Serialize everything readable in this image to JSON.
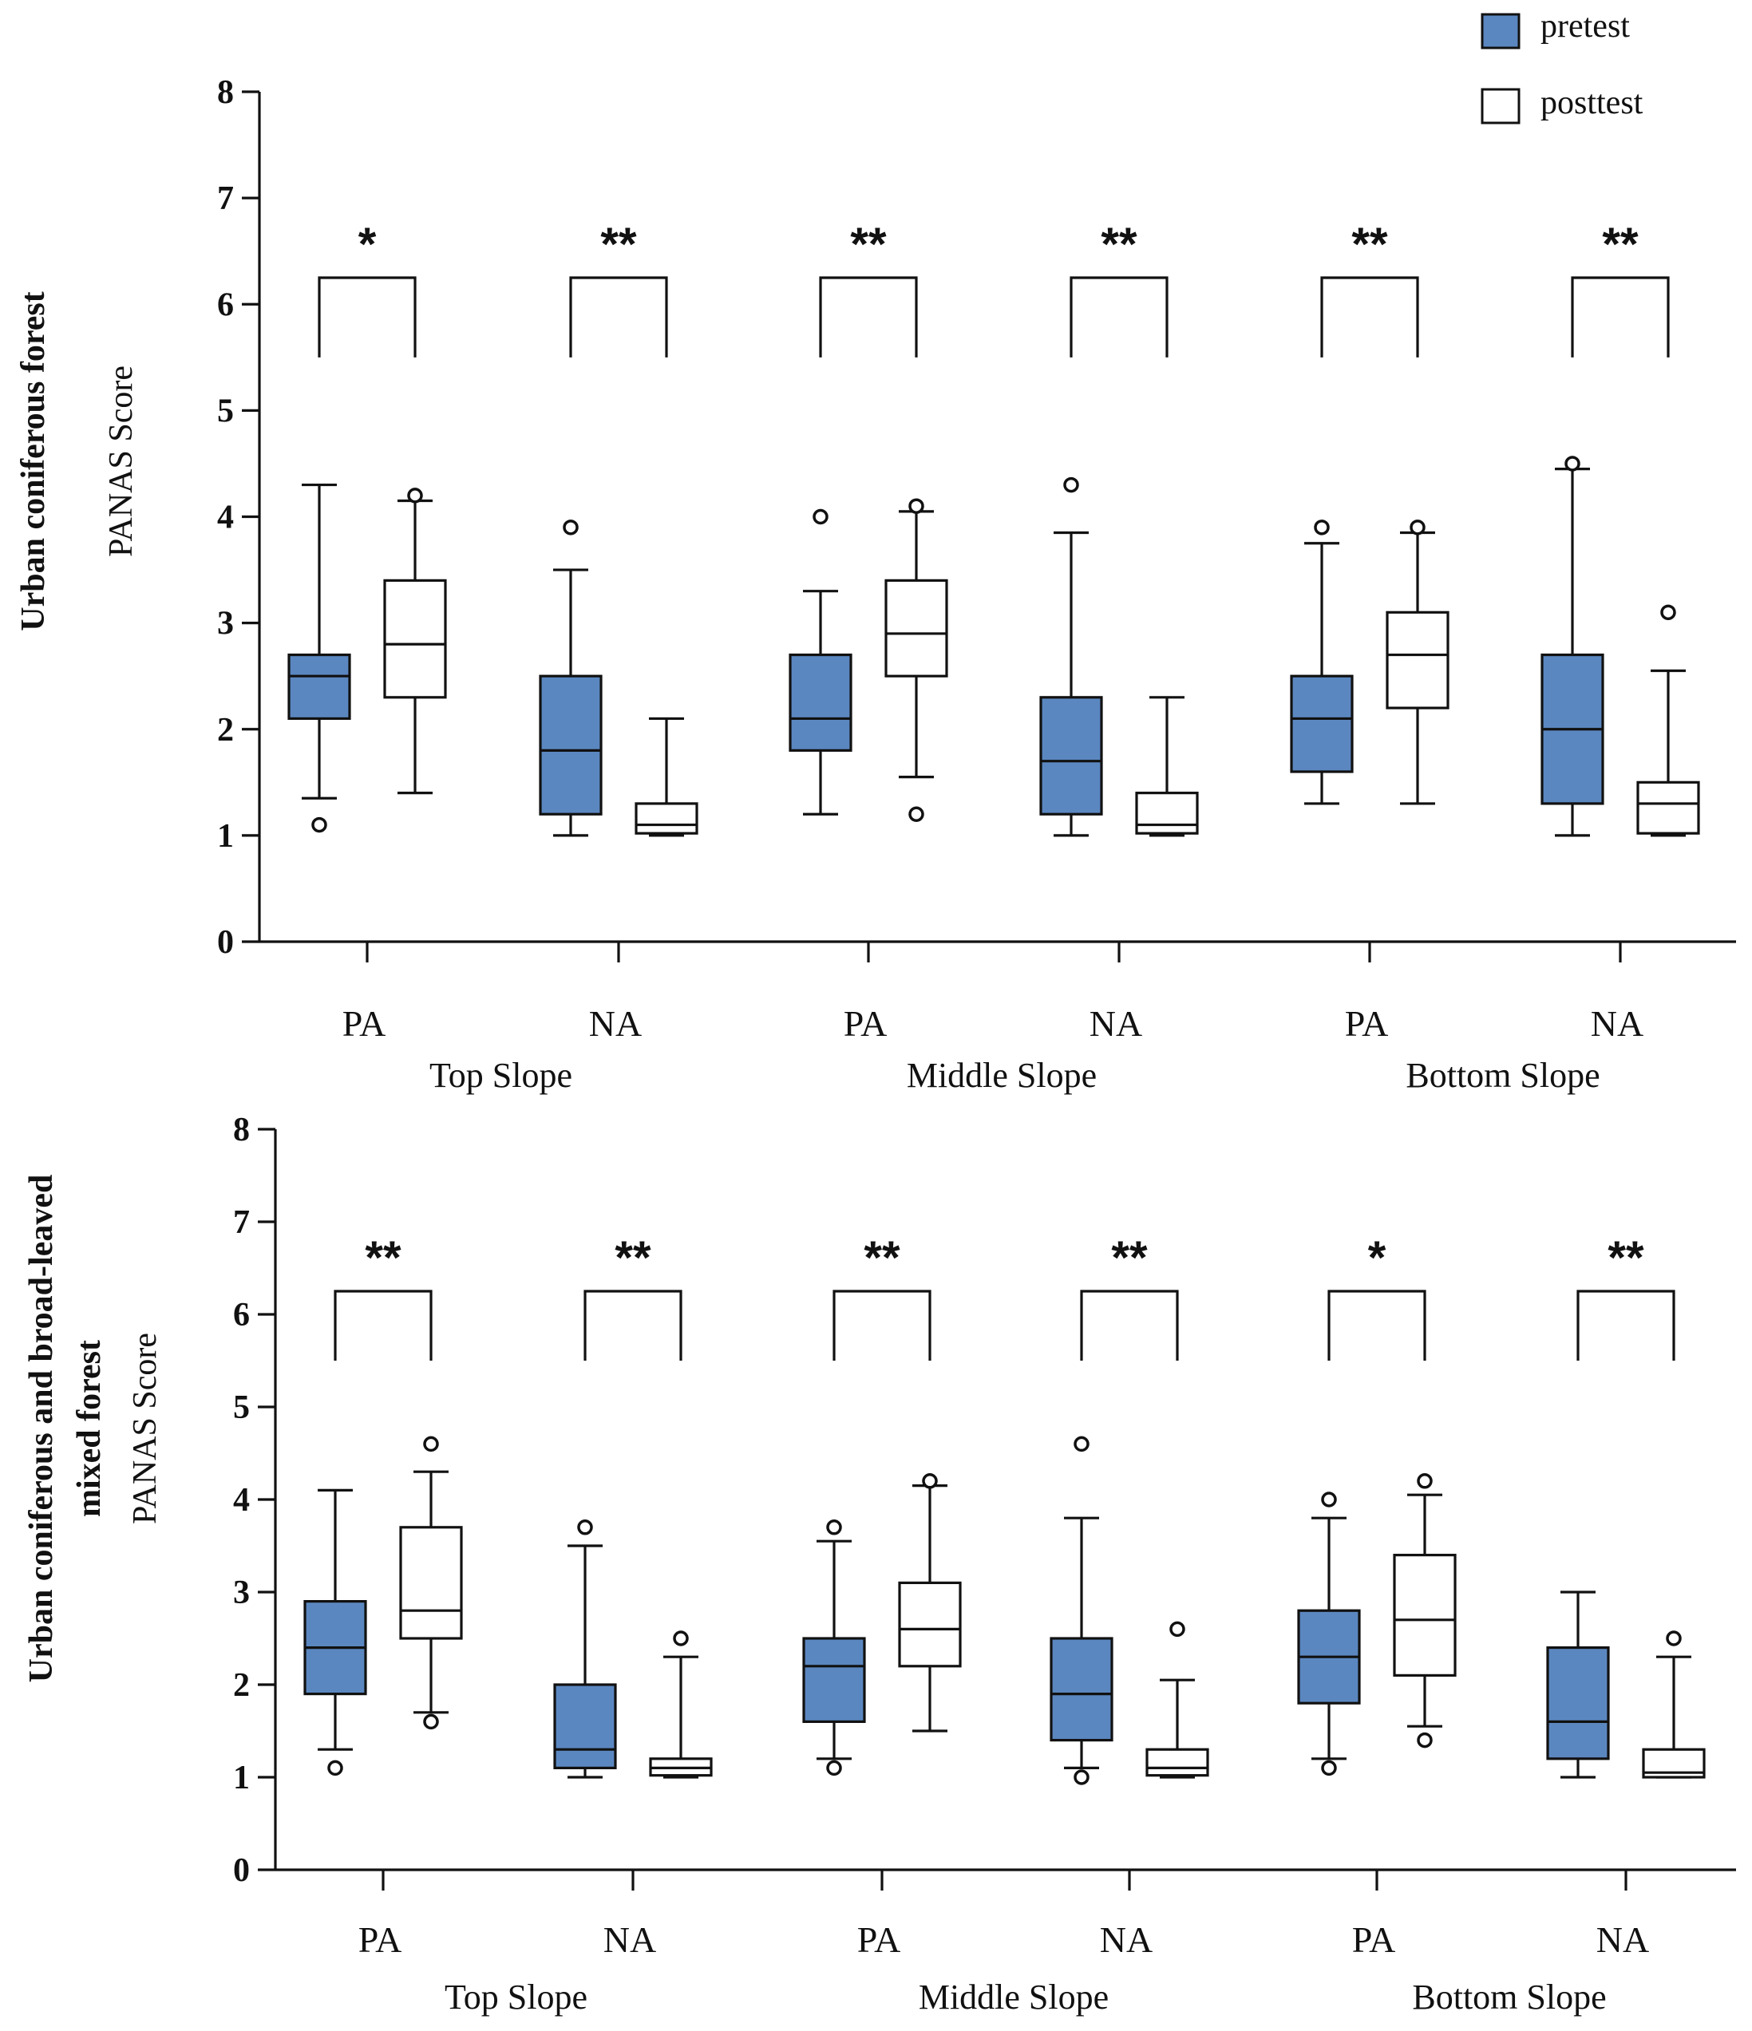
{
  "legend": {
    "items": [
      {
        "label": "pretest",
        "color": "#5b87c0"
      },
      {
        "label": "posttest",
        "color": "#ffffff"
      }
    ]
  },
  "chart_data": [
    {
      "type": "box",
      "ylabel_lines": [
        "Urban coniferous forest",
        "PANAS Score"
      ],
      "ylim": [
        0,
        8
      ],
      "yticks": [
        "0",
        "1",
        "2",
        "3",
        "4",
        "5",
        "6",
        "7",
        "8"
      ],
      "categories": [
        "PA",
        "NA",
        "PA",
        "NA",
        "PA",
        "NA"
      ],
      "groups": [
        "Top Slope",
        "Middle Slope",
        "Bottom Slope"
      ],
      "significance": [
        "*",
        "**",
        "**",
        "**",
        "**",
        "**"
      ],
      "series": [
        {
          "name": "pretest",
          "boxes": [
            {
              "min": 1.35,
              "q1": 2.1,
              "median": 2.5,
              "q3": 2.7,
              "max": 4.3,
              "outliers": [
                1.1
              ]
            },
            {
              "min": 1.0,
              "q1": 1.2,
              "median": 1.8,
              "q3": 2.5,
              "max": 3.5,
              "outliers": [
                3.9
              ]
            },
            {
              "min": 1.2,
              "q1": 1.8,
              "median": 2.1,
              "q3": 2.7,
              "max": 3.3,
              "outliers": [
                4.0
              ]
            },
            {
              "min": 1.0,
              "q1": 1.2,
              "median": 1.7,
              "q3": 2.3,
              "max": 3.85,
              "outliers": [
                4.3
              ]
            },
            {
              "min": 1.3,
              "q1": 1.6,
              "median": 2.1,
              "q3": 2.5,
              "max": 3.75,
              "outliers": [
                3.9
              ]
            },
            {
              "min": 1.0,
              "q1": 1.3,
              "median": 2.0,
              "q3": 2.7,
              "max": 4.45,
              "outliers": [
                4.5
              ]
            }
          ]
        },
        {
          "name": "posttest",
          "boxes": [
            {
              "min": 1.4,
              "q1": 2.3,
              "median": 2.8,
              "q3": 3.4,
              "max": 4.15,
              "outliers": [
                4.2
              ]
            },
            {
              "min": 1.0,
              "q1": 1.02,
              "median": 1.1,
              "q3": 1.3,
              "max": 2.1,
              "outliers": []
            },
            {
              "min": 1.55,
              "q1": 2.5,
              "median": 2.9,
              "q3": 3.4,
              "max": 4.05,
              "outliers": [
                1.2,
                4.1
              ]
            },
            {
              "min": 1.0,
              "q1": 1.02,
              "median": 1.1,
              "q3": 1.4,
              "max": 2.3,
              "outliers": []
            },
            {
              "min": 1.3,
              "q1": 2.2,
              "median": 2.7,
              "q3": 3.1,
              "max": 3.85,
              "outliers": [
                3.9
              ]
            },
            {
              "min": 1.0,
              "q1": 1.02,
              "median": 1.3,
              "q3": 1.5,
              "max": 2.55,
              "outliers": [
                3.1
              ]
            }
          ]
        }
      ]
    },
    {
      "type": "box",
      "ylabel_lines": [
        "Urban coniferous and broad-leaved",
        "mixed forest",
        "PANAS Score"
      ],
      "ylim": [
        0,
        8
      ],
      "yticks": [
        "0",
        "1",
        "2",
        "3",
        "4",
        "5",
        "6",
        "7",
        "8"
      ],
      "categories": [
        "PA",
        "NA",
        "PA",
        "NA",
        "PA",
        "NA"
      ],
      "groups": [
        "Top Slope",
        "Middle Slope",
        "Bottom Slope"
      ],
      "significance": [
        "**",
        "**",
        "**",
        "**",
        "*",
        "**"
      ],
      "series": [
        {
          "name": "pretest",
          "boxes": [
            {
              "min": 1.3,
              "q1": 1.9,
              "median": 2.4,
              "q3": 2.9,
              "max": 4.1,
              "outliers": [
                1.1
              ]
            },
            {
              "min": 1.0,
              "q1": 1.1,
              "median": 1.3,
              "q3": 2.0,
              "max": 3.5,
              "outliers": [
                3.7
              ]
            },
            {
              "min": 1.2,
              "q1": 1.6,
              "median": 2.2,
              "q3": 2.5,
              "max": 3.55,
              "outliers": [
                1.1,
                3.7
              ]
            },
            {
              "min": 1.1,
              "q1": 1.4,
              "median": 1.9,
              "q3": 2.5,
              "max": 3.8,
              "outliers": [
                1.0,
                4.6
              ]
            },
            {
              "min": 1.2,
              "q1": 1.8,
              "median": 2.3,
              "q3": 2.8,
              "max": 3.8,
              "outliers": [
                1.1,
                4.0
              ]
            },
            {
              "min": 1.0,
              "q1": 1.2,
              "median": 1.6,
              "q3": 2.4,
              "max": 3.0,
              "outliers": []
            }
          ]
        },
        {
          "name": "posttest",
          "boxes": [
            {
              "min": 1.7,
              "q1": 2.5,
              "median": 2.8,
              "q3": 3.7,
              "max": 4.3,
              "outliers": [
                1.6,
                4.6
              ]
            },
            {
              "min": 1.0,
              "q1": 1.02,
              "median": 1.1,
              "q3": 1.2,
              "max": 2.3,
              "outliers": [
                2.5
              ]
            },
            {
              "min": 1.5,
              "q1": 2.2,
              "median": 2.6,
              "q3": 3.1,
              "max": 4.15,
              "outliers": [
                4.2
              ]
            },
            {
              "min": 1.0,
              "q1": 1.02,
              "median": 1.1,
              "q3": 1.3,
              "max": 2.05,
              "outliers": [
                2.6
              ]
            },
            {
              "min": 1.55,
              "q1": 2.1,
              "median": 2.7,
              "q3": 3.4,
              "max": 4.05,
              "outliers": [
                1.4,
                4.2
              ]
            },
            {
              "min": 1.0,
              "q1": 1.0,
              "median": 1.05,
              "q3": 1.3,
              "max": 2.3,
              "outliers": [
                2.5
              ]
            }
          ]
        }
      ]
    }
  ]
}
